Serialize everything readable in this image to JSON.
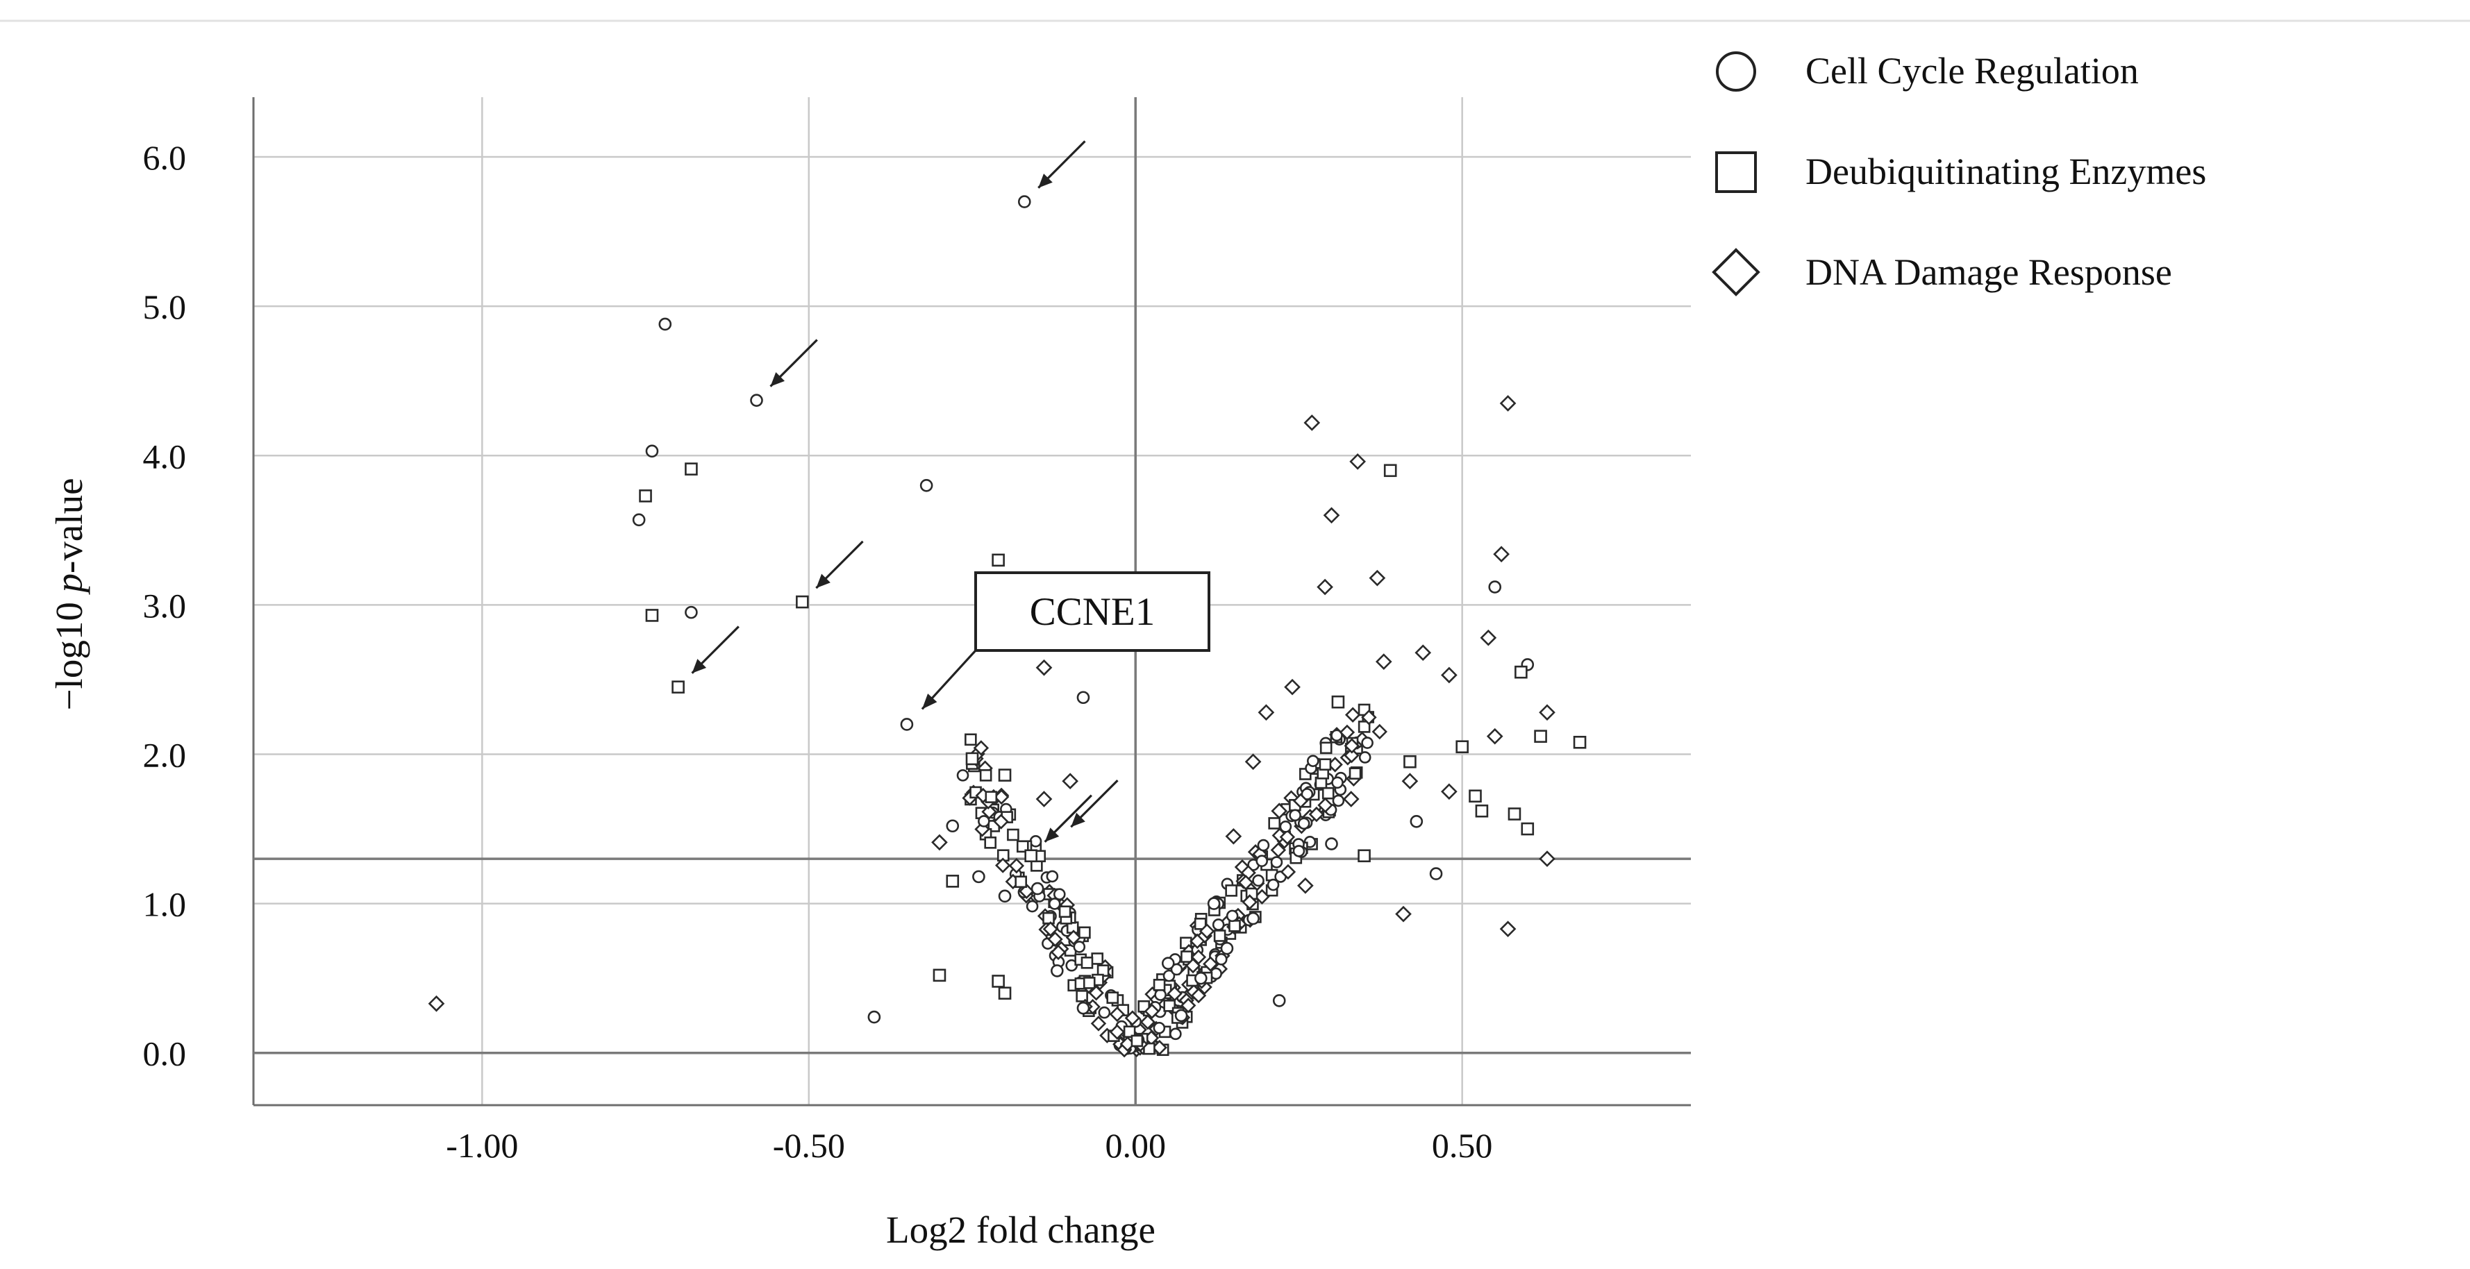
{
  "chart_data": {
    "type": "scatter",
    "title": "",
    "xlabel": "Log2 fold change",
    "ylabel_prefix": "−log10 ",
    "ylabel_italic": "p",
    "ylabel_suffix": "-value",
    "xlim": [
      -1.35,
      0.85
    ],
    "ylim": [
      -0.35,
      6.4
    ],
    "x_ticks": [
      {
        "value": -1.0,
        "label": "-1.00"
      },
      {
        "value": -0.5,
        "label": "-0.50"
      },
      {
        "value": 0.0,
        "label": "0.00"
      },
      {
        "value": 0.5,
        "label": "0.50"
      }
    ],
    "y_ticks": [
      {
        "value": 0,
        "label": "0.0"
      },
      {
        "value": 1,
        "label": "1.0"
      },
      {
        "value": 2,
        "label": "2.0"
      },
      {
        "value": 3,
        "label": "3.0"
      },
      {
        "value": 4,
        "label": "4.0"
      },
      {
        "value": 5,
        "label": "5.0"
      },
      {
        "value": 6,
        "label": "6.0"
      }
    ],
    "grid": true,
    "reference_lines": {
      "vertical_x": 0.0,
      "horizontal_y": [
        0.0,
        1.3
      ]
    },
    "legend_position": "right",
    "series": [
      {
        "name": "Cell Cycle Regulation",
        "marker": "circle",
        "points": [
          [
            -0.17,
            5.7
          ],
          [
            -0.72,
            4.88
          ],
          [
            -0.58,
            4.37
          ],
          [
            -0.74,
            4.03
          ],
          [
            -0.76,
            3.57
          ],
          [
            -0.32,
            3.8
          ],
          [
            -0.68,
            2.95
          ],
          [
            -0.35,
            2.2
          ],
          [
            -0.08,
            2.38
          ],
          [
            -0.28,
            1.52
          ],
          [
            -0.24,
            1.18
          ],
          [
            -0.2,
            1.05
          ],
          [
            -0.15,
            1.1
          ],
          [
            -0.4,
            0.24
          ],
          [
            0.43,
            1.55
          ],
          [
            0.46,
            1.2
          ],
          [
            0.6,
            2.6
          ],
          [
            0.55,
            3.12
          ],
          [
            0.3,
            1.4
          ],
          [
            0.12,
            1.0
          ],
          [
            0.22,
            0.35
          ],
          [
            0.05,
            0.6
          ],
          [
            0.07,
            0.25
          ],
          [
            0.1,
            0.5
          ],
          [
            -0.08,
            0.3
          ],
          [
            0.14,
            0.7
          ],
          [
            0.18,
            0.9
          ],
          [
            -0.12,
            0.55
          ]
        ]
      },
      {
        "name": "Deubiquitinating Enzymes",
        "marker": "square",
        "points": [
          [
            -0.68,
            3.91
          ],
          [
            -0.75,
            3.73
          ],
          [
            -0.74,
            2.93
          ],
          [
            -0.51,
            3.02
          ],
          [
            -0.7,
            2.45
          ],
          [
            -0.21,
            3.3
          ],
          [
            -0.25,
            1.97
          ],
          [
            -0.2,
            1.86
          ],
          [
            -0.16,
            1.32
          ],
          [
            -0.28,
            1.15
          ],
          [
            -0.3,
            0.52
          ],
          [
            -0.21,
            0.48
          ],
          [
            -0.2,
            0.4
          ],
          [
            0.39,
            3.9
          ],
          [
            0.59,
            2.55
          ],
          [
            0.62,
            2.12
          ],
          [
            0.68,
            2.08
          ],
          [
            0.5,
            2.05
          ],
          [
            0.53,
            1.62
          ],
          [
            0.58,
            1.6
          ],
          [
            0.6,
            1.5
          ],
          [
            0.52,
            1.72
          ],
          [
            0.42,
            1.95
          ],
          [
            0.31,
            2.35
          ],
          [
            0.35,
            1.32
          ]
        ]
      },
      {
        "name": "DNA Damage Response",
        "marker": "diamond",
        "points": [
          [
            -1.07,
            0.33
          ],
          [
            -0.3,
            1.41
          ],
          [
            -0.14,
            2.58
          ],
          [
            0.27,
            4.22
          ],
          [
            0.34,
            3.96
          ],
          [
            0.3,
            3.6
          ],
          [
            0.57,
            4.35
          ],
          [
            0.56,
            3.34
          ],
          [
            0.29,
            3.12
          ],
          [
            0.37,
            3.18
          ],
          [
            0.54,
            2.78
          ],
          [
            0.55,
            2.12
          ],
          [
            0.44,
            2.68
          ],
          [
            0.63,
            2.28
          ],
          [
            0.48,
            2.53
          ],
          [
            0.63,
            1.3
          ],
          [
            0.57,
            0.83
          ],
          [
            0.41,
            0.93
          ],
          [
            0.24,
            2.45
          ],
          [
            0.2,
            2.28
          ],
          [
            0.18,
            1.95
          ],
          [
            0.33,
            1.7
          ],
          [
            0.15,
            1.45
          ],
          [
            0.38,
            2.62
          ],
          [
            0.26,
            1.12
          ],
          [
            0.22,
            1.62
          ],
          [
            0.42,
            1.82
          ],
          [
            0.48,
            1.75
          ],
          [
            -0.14,
            1.7
          ],
          [
            -0.1,
            1.82
          ]
        ]
      }
    ],
    "annotations": [
      {
        "type": "callout",
        "text": "CCNE1",
        "point": [
          -0.35,
          2.2
        ]
      },
      {
        "type": "arrow",
        "point": [
          -0.17,
          5.7
        ]
      },
      {
        "type": "arrow",
        "point": [
          -0.58,
          4.37
        ]
      },
      {
        "type": "arrow",
        "point": [
          -0.51,
          3.02
        ]
      },
      {
        "type": "arrow",
        "point": [
          -0.7,
          2.45
        ]
      },
      {
        "type": "arrow",
        "point": [
          -0.16,
          1.32
        ]
      },
      {
        "type": "arrow",
        "point": [
          -0.12,
          1.42
        ]
      }
    ]
  },
  "legend": {
    "items": [
      {
        "label": "Cell Cycle Regulation",
        "marker": "circle"
      },
      {
        "label": "Deubiquitinating Enzymes",
        "marker": "square"
      },
      {
        "label": "DNA Damage Response",
        "marker": "diamond"
      }
    ]
  },
  "colors": {
    "marker_stroke": "#2a2a2a",
    "grid": "#c9c9c9",
    "reference": "#7a7a7a",
    "text": "#111111"
  }
}
